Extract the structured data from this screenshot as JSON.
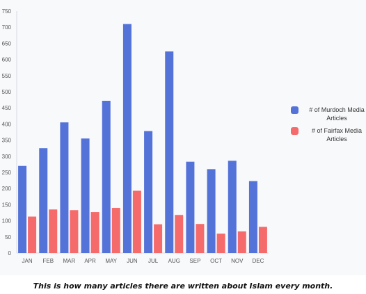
{
  "chart_data": {
    "type": "bar",
    "categories": [
      "JAN",
      "FEB",
      "MAR",
      "APR",
      "MAY",
      "JUN",
      "JUL",
      "AUG",
      "SEP",
      "OCT",
      "NOV",
      "DEC"
    ],
    "series": [
      {
        "name": "# of Murdoch Media Articles",
        "values": [
          270,
          325,
          405,
          355,
          472,
          710,
          378,
          625,
          283,
          260,
          286,
          223
        ],
        "color": "#5473d9"
      },
      {
        "name": "# of Fairfax Media Articles",
        "values": [
          113,
          135,
          133,
          127,
          140,
          193,
          89,
          118,
          90,
          60,
          67,
          81
        ],
        "color": "#f56a6a"
      }
    ],
    "ylim": [
      0,
      750
    ],
    "yticks": [
      0,
      50,
      100,
      150,
      200,
      250,
      300,
      350,
      400,
      450,
      500,
      550,
      600,
      650,
      700,
      750
    ],
    "grid": false,
    "legend_position": "right"
  },
  "legend": {
    "items": [
      {
        "label": "# of Murdoch Media Articles",
        "color": "#5473d9"
      },
      {
        "label": "# of Fairfax Media Articles",
        "color": "#f56a6a"
      }
    ]
  },
  "caption": "This is how many articles there are written about Islam every month."
}
